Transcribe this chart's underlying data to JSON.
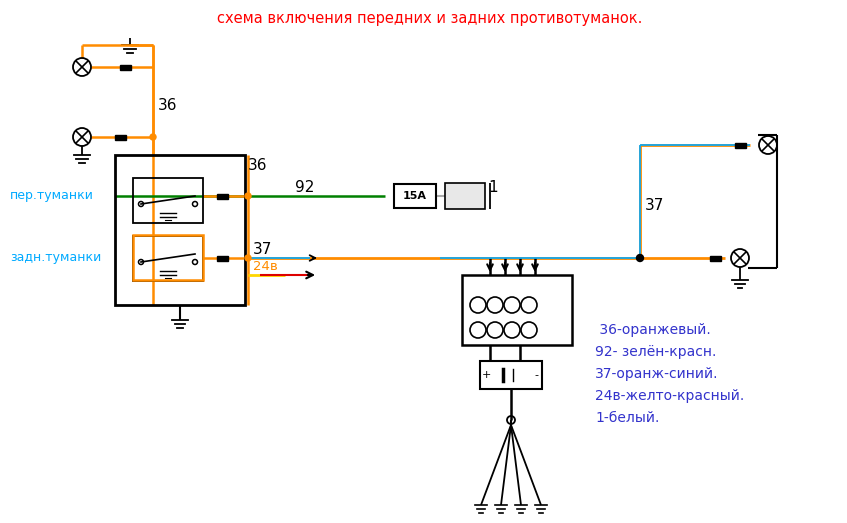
{
  "title": "схема включения передних и задних противотуманок.",
  "title_color": "#FF0000",
  "bg_color": "#FFFFFF",
  "wire_orange": "#FF8C00",
  "wire_green": "#008000",
  "wire_blue": "#00AAFF",
  "wire_yellow": "#FFD700",
  "wire_red": "#DD0000",
  "wire_black": "#000000",
  "wire_gray": "#AAAAAA",
  "label_per": "пер.туманки",
  "label_zadn": "задн.туманки",
  "label_36_top": "36",
  "label_36_side": "36",
  "label_92": "92",
  "label_37": "37",
  "label_24v": "24в",
  "label_1": "1",
  "legend_lines": [
    " 36-оранжевый.",
    "92- зелён-красн.",
    "37-оранж-синий.",
    "24в-желто-красный.",
    "1-белый."
  ],
  "fuse_label": "15А"
}
